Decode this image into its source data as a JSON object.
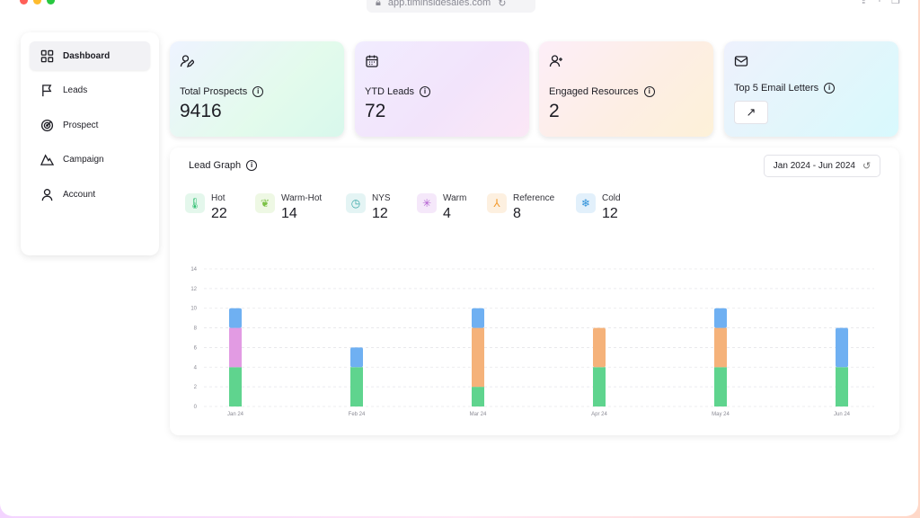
{
  "browser": {
    "url": "app.timinsidesales.com"
  },
  "sidebar": {
    "items": [
      {
        "label": "Dashboard",
        "icon": "grid-icon",
        "active": true
      },
      {
        "label": "Leads",
        "icon": "flag-icon"
      },
      {
        "label": "Prospect",
        "icon": "target-icon"
      },
      {
        "label": "Campaign",
        "icon": "mountain-icon"
      },
      {
        "label": "Account",
        "icon": "user-icon"
      }
    ]
  },
  "cards": [
    {
      "label": "Total Prospects",
      "value": "9416",
      "icon": "user-edit-icon"
    },
    {
      "label": "YTD Leads",
      "value": "72",
      "icon": "calendar-icon"
    },
    {
      "label": "Engaged Resources",
      "value": "2",
      "icon": "user-plus-icon"
    },
    {
      "label": "Top 5 Email Letters",
      "icon": "mail-icon"
    }
  ],
  "lead_graph": {
    "title": "Lead Graph",
    "date_range": "Jan 2024 - Jun 2024",
    "stats": [
      {
        "name": "Hot",
        "value": "22",
        "icon": "thermometer-hot-icon",
        "color": "#2fbf71"
      },
      {
        "name": "Warm-Hot",
        "value": "14",
        "icon": "leaf-icon",
        "color": "#7cc247"
      },
      {
        "name": "NYS",
        "value": "12",
        "icon": "clock-icon",
        "color": "#3aa7a7"
      },
      {
        "name": "Warm",
        "value": "4",
        "icon": "sun-snow-icon",
        "color": "#b35ed1"
      },
      {
        "name": "Reference",
        "value": "8",
        "icon": "merge-arrow-icon",
        "color": "#f39a2e"
      },
      {
        "name": "Cold",
        "value": "12",
        "icon": "thermometer-cold-icon",
        "color": "#2b8fd9"
      }
    ]
  },
  "chart_data": {
    "type": "bar",
    "stacked": true,
    "categories": [
      "Jan 24",
      "Feb 24",
      "Mar 24",
      "Apr 24",
      "May 24",
      "Jun 24"
    ],
    "series": [
      {
        "color": "#5fd48e",
        "values": [
          4,
          4,
          2,
          4,
          4,
          4
        ]
      },
      {
        "color": "#f5b27a",
        "values": [
          0,
          0,
          6,
          4,
          4,
          0
        ]
      },
      {
        "color": "#e29be3",
        "values": [
          4,
          0,
          0,
          0,
          0,
          0
        ]
      },
      {
        "color": "#6fb0f2",
        "values": [
          2,
          2,
          2,
          0,
          2,
          4
        ]
      }
    ],
    "yticks": [
      0,
      2,
      4,
      6,
      8,
      10,
      12,
      14
    ],
    "ylim": [
      0,
      14
    ],
    "grid": true
  }
}
